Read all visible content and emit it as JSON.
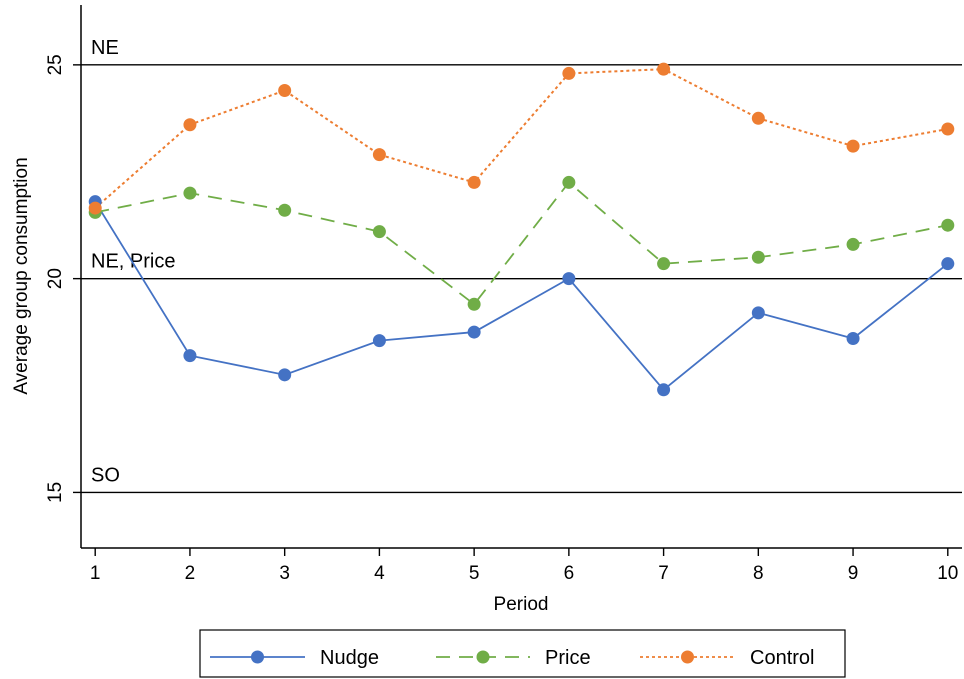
{
  "chart_data": {
    "type": "line",
    "title": "",
    "xlabel": "Period",
    "ylabel": "Average group consumption",
    "x": [
      1,
      2,
      3,
      4,
      5,
      6,
      7,
      8,
      9,
      10
    ],
    "xlim": [
      0.85,
      10.15
    ],
    "ylim": [
      13.7,
      26.4
    ],
    "yticks": [
      15,
      20,
      25
    ],
    "grid": false,
    "legend_position": "bottom",
    "reference_lines": [
      {
        "label": "NE",
        "value": 25
      },
      {
        "label": "NE, Price",
        "value": 20
      },
      {
        "label": "SO",
        "value": 15
      }
    ],
    "series": [
      {
        "name": "Nudge",
        "color": "#4472c4",
        "dash": "solid",
        "values": [
          21.8,
          18.2,
          17.75,
          18.55,
          18.75,
          20.0,
          17.4,
          19.2,
          18.6,
          20.35
        ]
      },
      {
        "name": "Price",
        "color": "#70ad47",
        "dash": "dashed",
        "values": [
          21.55,
          22.0,
          21.6,
          21.1,
          19.4,
          22.25,
          20.35,
          20.5,
          20.8,
          21.25
        ]
      },
      {
        "name": "Control",
        "color": "#ed7d31",
        "dash": "dotted",
        "values": [
          21.65,
          23.6,
          24.4,
          22.9,
          22.25,
          24.8,
          24.9,
          23.75,
          23.1,
          23.5
        ]
      }
    ]
  }
}
